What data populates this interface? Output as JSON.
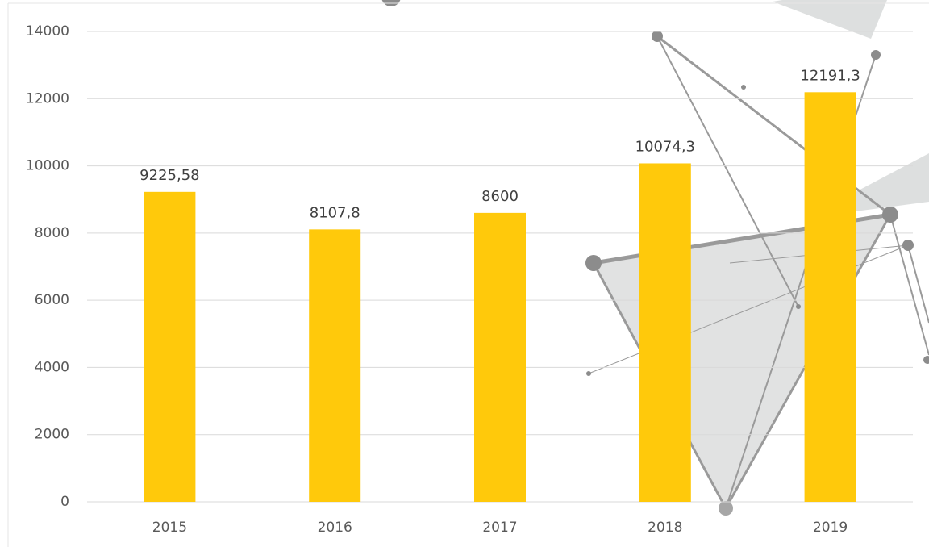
{
  "chart_data": {
    "type": "bar",
    "categories": [
      "2015",
      "2016",
      "2017",
      "2018",
      "2019"
    ],
    "values": [
      9225.58,
      8107.8,
      8600,
      10074.3,
      12191.3
    ],
    "value_labels": [
      "9225,58",
      "8107,8",
      "8600",
      "10074,3",
      "12191,3"
    ],
    "color": "#ffc90b",
    "ylim": [
      0,
      14000
    ],
    "yticks": [
      0,
      2000,
      4000,
      6000,
      8000,
      10000,
      12000,
      14000
    ],
    "grid": true
  }
}
